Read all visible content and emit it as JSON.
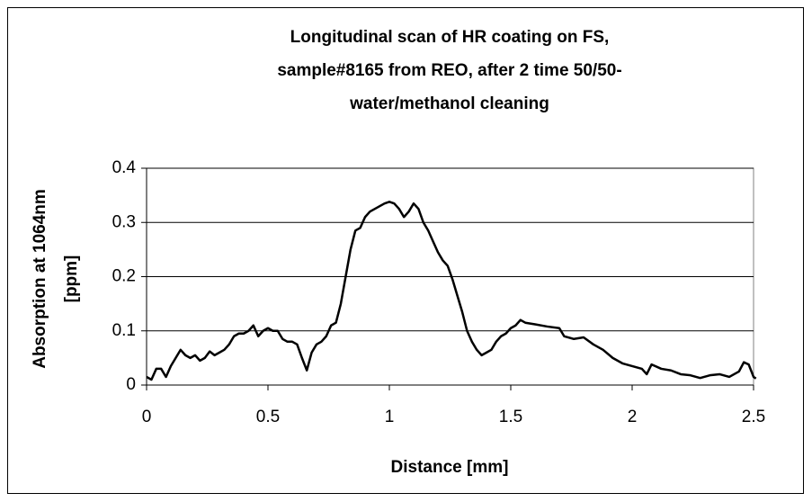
{
  "chart_data": {
    "type": "line",
    "title": [
      "Longitudinal scan of HR coating on FS,",
      "sample#8165 from REO, after 2 time 50/50-",
      "water/methanol  cleaning"
    ],
    "x_label": "Distance [mm]",
    "y_label": [
      "Absorption at 1064nm",
      "[ppm]"
    ],
    "xlim": [
      0,
      2.5
    ],
    "xticks": [
      0,
      0.5,
      1,
      1.5,
      2,
      2.5
    ],
    "ylim": [
      0,
      0.4
    ],
    "yticks": [
      0,
      0.1,
      0.2,
      0.3,
      0.4
    ],
    "grid": true,
    "series": [
      {
        "color": "#000000",
        "x": [
          0.0,
          0.02,
          0.04,
          0.06,
          0.08,
          0.1,
          0.12,
          0.14,
          0.16,
          0.18,
          0.2,
          0.22,
          0.24,
          0.26,
          0.28,
          0.3,
          0.32,
          0.34,
          0.36,
          0.38,
          0.4,
          0.42,
          0.44,
          0.46,
          0.48,
          0.5,
          0.52,
          0.54,
          0.56,
          0.58,
          0.6,
          0.62,
          0.64,
          0.66,
          0.68,
          0.7,
          0.72,
          0.74,
          0.76,
          0.78,
          0.8,
          0.82,
          0.84,
          0.86,
          0.88,
          0.9,
          0.92,
          0.94,
          0.96,
          0.98,
          1.0,
          1.02,
          1.04,
          1.06,
          1.08,
          1.1,
          1.12,
          1.14,
          1.16,
          1.18,
          1.2,
          1.22,
          1.24,
          1.26,
          1.28,
          1.3,
          1.32,
          1.34,
          1.36,
          1.38,
          1.4,
          1.42,
          1.44,
          1.46,
          1.48,
          1.5,
          1.52,
          1.54,
          1.56,
          1.6,
          1.65,
          1.7,
          1.72,
          1.76,
          1.8,
          1.84,
          1.88,
          1.92,
          1.96,
          2.0,
          2.04,
          2.06,
          2.08,
          2.12,
          2.16,
          2.2,
          2.24,
          2.28,
          2.32,
          2.36,
          2.4,
          2.44,
          2.46,
          2.48,
          2.5,
          2.51
        ],
        "values": [
          0.015,
          0.01,
          0.03,
          0.03,
          0.015,
          0.035,
          0.05,
          0.065,
          0.055,
          0.05,
          0.055,
          0.045,
          0.05,
          0.062,
          0.055,
          0.06,
          0.065,
          0.075,
          0.09,
          0.095,
          0.095,
          0.1,
          0.11,
          0.09,
          0.1,
          0.105,
          0.1,
          0.1,
          0.085,
          0.08,
          0.08,
          0.075,
          0.05,
          0.027,
          0.06,
          0.075,
          0.08,
          0.09,
          0.11,
          0.115,
          0.15,
          0.2,
          0.25,
          0.285,
          0.29,
          0.31,
          0.32,
          0.325,
          0.33,
          0.335,
          0.338,
          0.335,
          0.325,
          0.31,
          0.32,
          0.335,
          0.325,
          0.3,
          0.285,
          0.265,
          0.245,
          0.23,
          0.22,
          0.195,
          0.165,
          0.135,
          0.1,
          0.08,
          0.065,
          0.055,
          0.06,
          0.065,
          0.08,
          0.09,
          0.095,
          0.105,
          0.11,
          0.12,
          0.115,
          0.112,
          0.108,
          0.105,
          0.09,
          0.085,
          0.088,
          0.075,
          0.065,
          0.05,
          0.04,
          0.035,
          0.03,
          0.02,
          0.038,
          0.03,
          0.027,
          0.02,
          0.018,
          0.013,
          0.018,
          0.02,
          0.015,
          0.025,
          0.042,
          0.038,
          0.015,
          0.012
        ]
      }
    ]
  }
}
